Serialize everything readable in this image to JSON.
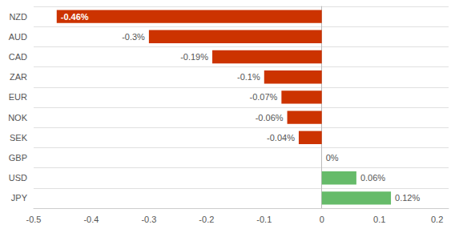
{
  "chart_data": {
    "type": "bar",
    "orientation": "horizontal",
    "categories": [
      "NZD",
      "AUD",
      "CAD",
      "ZAR",
      "EUR",
      "NOK",
      "SEK",
      "GBP",
      "USD",
      "JPY"
    ],
    "values": [
      -0.46,
      -0.3,
      -0.19,
      -0.1,
      -0.07,
      -0.06,
      -0.04,
      0.0,
      0.06,
      0.12
    ],
    "value_labels": [
      "-0.46%",
      "-0.3%",
      "-0.19%",
      "-0.1%",
      "-0.07%",
      "-0.06%",
      "-0.04%",
      "0%",
      "0.06%",
      "0.12%"
    ],
    "data_labels": true,
    "colors": [
      "#cc3300",
      "#cc3300",
      "#cc3300",
      "#cc3300",
      "#cc3300",
      "#cc3300",
      "#cc3300",
      "#888888",
      "#66bb6a",
      "#66bb6a"
    ],
    "xlim": [
      -0.5,
      0.22
    ],
    "xticks": [
      -0.5,
      -0.4,
      -0.3,
      -0.2,
      -0.1,
      0,
      0.1,
      0.2
    ],
    "grid": true
  }
}
